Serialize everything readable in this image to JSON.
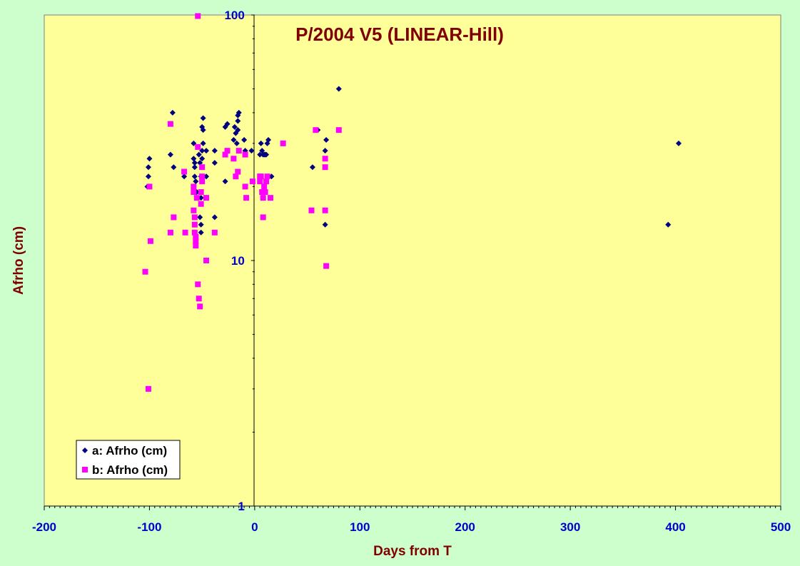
{
  "colors": {
    "background": "#ccffcc",
    "plot_background": "#ffff99",
    "series_a": "#000080",
    "series_b": "#ff00ff",
    "title": "#800000",
    "tick_labels": "#0000cc"
  },
  "chart_data": {
    "type": "scatter",
    "title": "P/2004 V5 (LINEAR-Hill)",
    "xlabel": "Days from T",
    "ylabel": "Afrho (cm)",
    "xlim": [
      -200,
      500
    ],
    "ylim": [
      1,
      100
    ],
    "yscale": "log",
    "xticks": [
      -200,
      -100,
      0,
      100,
      200,
      300,
      400,
      500
    ],
    "yticks": [
      1,
      10,
      100
    ],
    "grid": false,
    "legend_position": "bottom-left",
    "series": [
      {
        "name": "a: Afrho (cm)",
        "marker": "diamond",
        "color": "#000080",
        "points": [
          [
            -102,
            20
          ],
          [
            -101,
            22
          ],
          [
            -100,
            26
          ],
          [
            -101,
            24
          ],
          [
            -100,
            20
          ],
          [
            -80,
            27
          ],
          [
            -78,
            40
          ],
          [
            -77,
            24
          ],
          [
            -67,
            22
          ],
          [
            -58,
            30
          ],
          [
            -58,
            26
          ],
          [
            -57,
            25
          ],
          [
            -57,
            22
          ],
          [
            -57,
            24
          ],
          [
            -56,
            21
          ],
          [
            -55,
            19
          ],
          [
            -54,
            29
          ],
          [
            -53,
            27
          ],
          [
            -52,
            25
          ],
          [
            -51,
            22
          ],
          [
            -51,
            18
          ],
          [
            -51,
            17
          ],
          [
            -52,
            15
          ],
          [
            -51,
            14
          ],
          [
            -51,
            13
          ],
          [
            -50,
            26
          ],
          [
            -50,
            24
          ],
          [
            -50,
            28
          ],
          [
            -50,
            35
          ],
          [
            -49,
            30
          ],
          [
            -49,
            34
          ],
          [
            -49,
            38
          ],
          [
            -46,
            28
          ],
          [
            -46,
            22
          ],
          [
            -38,
            28
          ],
          [
            -38,
            25
          ],
          [
            -38,
            15
          ],
          [
            -28,
            35
          ],
          [
            -28,
            21
          ],
          [
            -26,
            36
          ],
          [
            -20,
            31
          ],
          [
            -19,
            35
          ],
          [
            -18,
            33
          ],
          [
            -17,
            30
          ],
          [
            -16,
            34
          ],
          [
            -16,
            37
          ],
          [
            -16,
            39
          ],
          [
            -15,
            40
          ],
          [
            -10,
            31
          ],
          [
            -9,
            28
          ],
          [
            -3,
            28
          ],
          [
            5,
            27
          ],
          [
            6,
            30
          ],
          [
            7,
            28
          ],
          [
            8,
            27
          ],
          [
            9,
            27
          ],
          [
            10,
            27
          ],
          [
            11,
            27
          ],
          [
            12,
            30
          ],
          [
            13,
            31
          ],
          [
            16,
            22
          ],
          [
            55,
            24
          ],
          [
            60,
            34
          ],
          [
            67,
            28
          ],
          [
            68,
            31
          ],
          [
            67,
            14
          ],
          [
            80,
            50
          ],
          [
            393,
            14
          ],
          [
            403,
            30
          ]
        ]
      },
      {
        "name": "b: Afrho (cm)",
        "marker": "square",
        "color": "#ff00ff",
        "points": [
          [
            -104,
            9
          ],
          [
            -101,
            3
          ],
          [
            -100,
            20
          ],
          [
            -99,
            12
          ],
          [
            -80,
            13
          ],
          [
            -80,
            36
          ],
          [
            -77,
            15
          ],
          [
            -67,
            23
          ],
          [
            -66,
            13
          ],
          [
            -58,
            20
          ],
          [
            -58,
            19
          ],
          [
            -58,
            16
          ],
          [
            -57,
            15
          ],
          [
            -57,
            14
          ],
          [
            -57,
            13
          ],
          [
            -56,
            12.5
          ],
          [
            -56,
            12
          ],
          [
            -56,
            11.5
          ],
          [
            -55,
            18
          ],
          [
            -54,
            29
          ],
          [
            -54,
            8
          ],
          [
            -53,
            7
          ],
          [
            -52,
            6.5
          ],
          [
            -51,
            19
          ],
          [
            -51,
            17
          ],
          [
            -50,
            24
          ],
          [
            -50,
            22
          ],
          [
            -50,
            21
          ],
          [
            -46,
            18
          ],
          [
            -46,
            10
          ],
          [
            -38,
            13
          ],
          [
            -28,
            27
          ],
          [
            -26,
            28
          ],
          [
            -20,
            26
          ],
          [
            -18,
            22
          ],
          [
            -16,
            23
          ],
          [
            -15,
            28
          ],
          [
            -9,
            27
          ],
          [
            -9,
            20
          ],
          [
            -8,
            18
          ],
          [
            -2,
            21
          ],
          [
            5,
            22
          ],
          [
            5,
            21
          ],
          [
            6,
            22
          ],
          [
            7,
            19
          ],
          [
            8,
            18
          ],
          [
            8,
            15
          ],
          [
            9,
            20
          ],
          [
            10,
            19
          ],
          [
            11,
            21
          ],
          [
            12,
            22
          ],
          [
            15,
            18
          ],
          [
            27,
            30
          ],
          [
            54,
            16
          ],
          [
            58,
            34
          ],
          [
            67,
            26
          ],
          [
            67,
            24
          ],
          [
            67,
            16
          ],
          [
            68,
            9.5
          ],
          [
            80,
            34
          ],
          [
            -54,
            99
          ]
        ]
      }
    ]
  }
}
